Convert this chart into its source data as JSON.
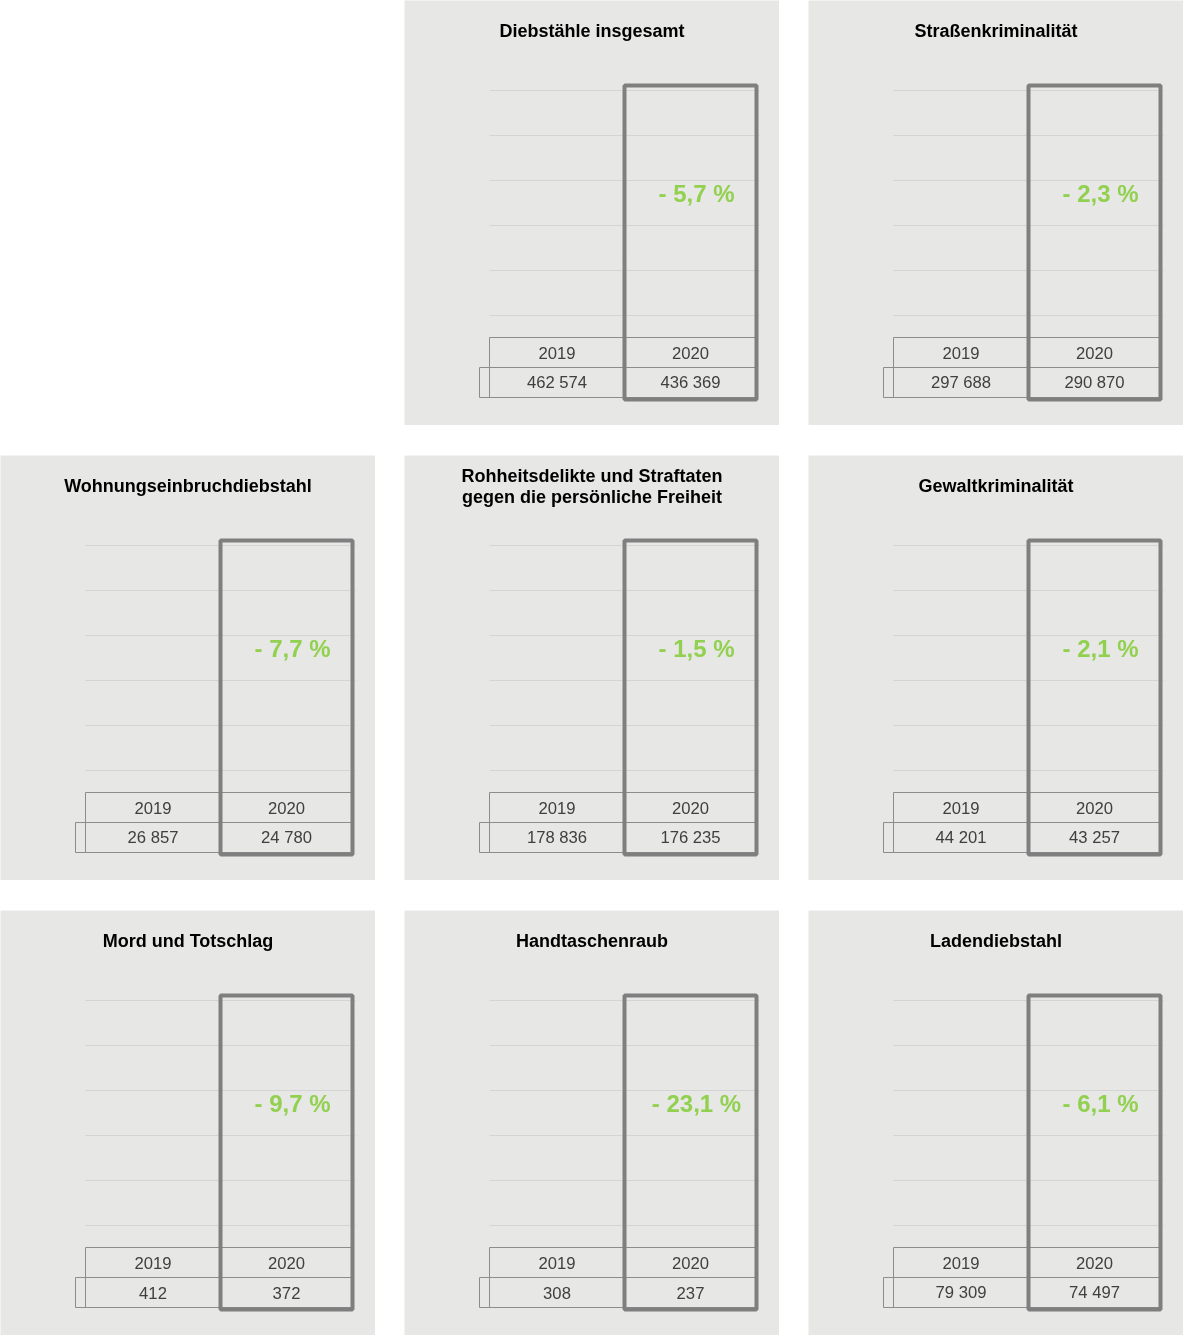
{
  "chart_data": [
    {
      "type": "other",
      "title": "Diebstähle insgesamt",
      "categories": [
        "2019",
        "2020"
      ],
      "values": [
        462574,
        436369
      ],
      "data_labels": true,
      "annotations": [
        "- 5,7 %"
      ]
    },
    {
      "type": "other",
      "title": "Straßenkriminalität",
      "categories": [
        "2019",
        "2020"
      ],
      "values": [
        297688,
        290870
      ],
      "data_labels": true,
      "annotations": [
        "- 2,3 %"
      ]
    },
    {
      "type": "other",
      "title": "Wohnungseinbruchdiebstahl",
      "categories": [
        "2019",
        "2020"
      ],
      "values": [
        26857,
        24780
      ],
      "data_labels": true,
      "annotations": [
        "- 7,7 %"
      ]
    },
    {
      "type": "other",
      "title": "Rohheitsdelikte und Straftaten gegen die persönliche Freiheit",
      "categories": [
        "2019",
        "2020"
      ],
      "values": [
        178836,
        176235
      ],
      "data_labels": true,
      "annotations": [
        "- 1,5 %"
      ]
    },
    {
      "type": "other",
      "title": "Gewaltkriminalität",
      "categories": [
        "2019",
        "2020"
      ],
      "values": [
        44201,
        43257
      ],
      "data_labels": true,
      "annotations": [
        "- 2,1 %"
      ]
    },
    {
      "type": "other",
      "title": "Mord und Totschlag",
      "categories": [
        "2019",
        "2020"
      ],
      "values": [
        412,
        372
      ],
      "data_labels": true,
      "annotations": [
        "- 9,7 %"
      ]
    },
    {
      "type": "other",
      "title": "Handtaschenraub",
      "categories": [
        "2019",
        "2020"
      ],
      "values": [
        308,
        237
      ],
      "data_labels": true,
      "annotations": [
        "- 23,1 %"
      ]
    },
    {
      "type": "other",
      "title": "Ladendiebstahl",
      "categories": [
        "2019",
        "2020"
      ],
      "values": [
        79309,
        74497
      ],
      "data_labels": true,
      "annotations": [
        "- 6,1 %"
      ]
    }
  ]
}
